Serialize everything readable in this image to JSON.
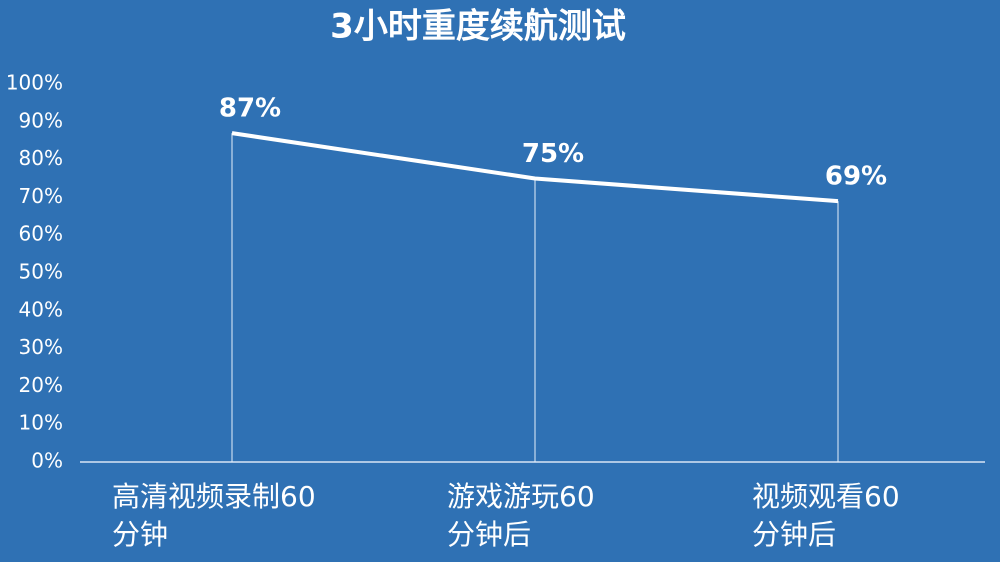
{
  "chart_data": {
    "type": "line",
    "title": "3小时重度续航测试",
    "categories": [
      "高清视频录制60\n分钟",
      "游戏游玩60\n分钟后",
      "视频观看60\n分钟后"
    ],
    "values": [
      87,
      75,
      69
    ],
    "value_labels": [
      "87%",
      "75%",
      "69%"
    ],
    "color": "#ffffff",
    "ylim": [
      0,
      100
    ],
    "yticks": [
      {
        "value": 0,
        "label": "0%"
      },
      {
        "value": 10,
        "label": "10%"
      },
      {
        "value": 20,
        "label": "20%"
      },
      {
        "value": 30,
        "label": "30%"
      },
      {
        "value": 40,
        "label": "40%"
      },
      {
        "value": 50,
        "label": "50%"
      },
      {
        "value": 60,
        "label": "60%"
      },
      {
        "value": 70,
        "label": "70%"
      },
      {
        "value": 80,
        "label": "80%"
      },
      {
        "value": 90,
        "label": "90%"
      },
      {
        "value": 100,
        "label": "100%"
      }
    ]
  }
}
